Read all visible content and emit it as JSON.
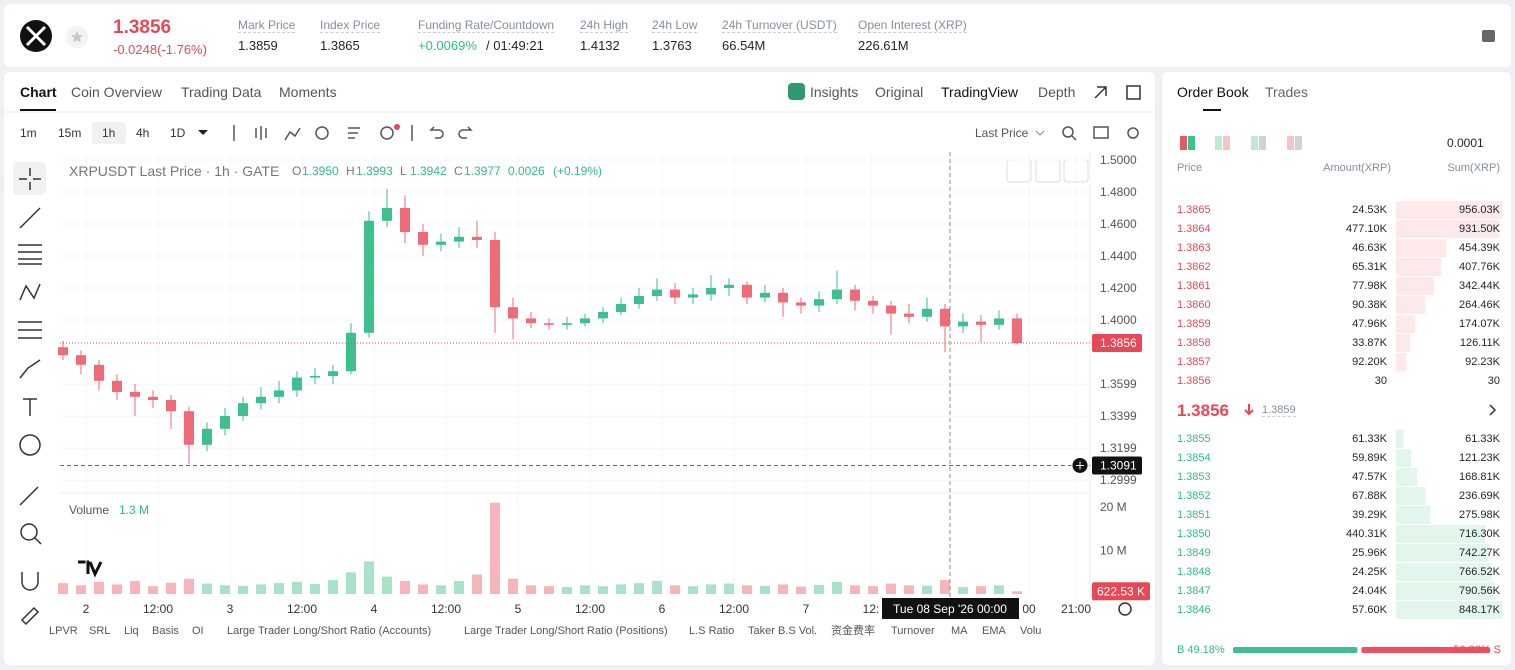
{
  "header": {
    "price": "1.3856",
    "change": "-0.0248(-1.76%)",
    "stats": [
      {
        "label": "Mark Price",
        "value": "1.3859"
      },
      {
        "label": "Index Price",
        "value": "1.3865"
      },
      {
        "label": "Funding Rate/Countdown",
        "value": "+0.0069%",
        "value2": "/ 01:49:21"
      },
      {
        "label": "24h High",
        "value": "1.4132"
      },
      {
        "label": "24h Low",
        "value": "1.3763"
      },
      {
        "label": "24h Turnover (USDT)",
        "value": "66.54M"
      },
      {
        "label": "Open Interest (XRP)",
        "value": "226.61M"
      }
    ]
  },
  "tabs": [
    "Chart",
    "Coin Overview",
    "Trading Data",
    "Moments"
  ],
  "view_tabs": [
    "Insights",
    "Original",
    "TradingView",
    "Depth"
  ],
  "intervals": [
    "1m",
    "15m",
    "1h",
    "4h",
    "1D"
  ],
  "price_source": "Last Price",
  "indicators": [
    "LPVR",
    "SRL",
    "Liq",
    "Basis",
    "OI",
    "Large Trader Long/Short Ratio (Accounts)",
    "Large Trader Long/Short Ratio (Positions)",
    "L.S Ratio",
    "Taker B.S Vol.",
    "资金费率",
    "Turnover",
    "MA",
    "EMA",
    "Volu"
  ],
  "chart_data": {
    "type": "candlestick",
    "title": "XRPUSDT Last Price · 1h · GATE",
    "ohlc_legend": [
      {
        "label": "O",
        "value": "1.3950"
      },
      {
        "label": "H",
        "value": "1.3993"
      },
      {
        "label": "L",
        "value": "1.3942"
      },
      {
        "label": "C",
        "value": "1.3977"
      }
    ],
    "change": "0.0026",
    "change_pct": "(+0.19%)",
    "open": [
      1.383,
      1.378,
      1.372,
      1.362,
      1.355,
      1.352,
      1.35,
      1.343,
      1.322,
      1.332,
      1.34,
      1.348,
      1.352,
      1.356,
      1.364,
      1.365,
      1.368,
      1.392,
      1.462,
      1.47,
      1.455,
      1.447,
      1.449,
      1.452,
      1.45,
      1.408,
      1.401,
      1.398,
      1.397,
      1.398,
      1.401,
      1.405,
      1.41,
      1.415,
      1.419,
      1.414,
      1.416,
      1.42,
      1.422,
      1.414,
      1.417,
      1.411,
      1.409,
      1.413,
      1.419,
      1.412,
      1.409,
      1.404,
      1.402,
      1.407,
      1.396,
      1.399,
      1.397,
      1.401
    ],
    "high": [
      1.387,
      1.381,
      1.375,
      1.366,
      1.36,
      1.356,
      1.353,
      1.346,
      1.336,
      1.345,
      1.352,
      1.358,
      1.362,
      1.368,
      1.37,
      1.372,
      1.398,
      1.468,
      1.482,
      1.478,
      1.46,
      1.454,
      1.458,
      1.462,
      1.455,
      1.414,
      1.405,
      1.401,
      1.402,
      1.404,
      1.408,
      1.414,
      1.42,
      1.426,
      1.423,
      1.42,
      1.428,
      1.426,
      1.424,
      1.422,
      1.42,
      1.414,
      1.418,
      1.431,
      1.422,
      1.415,
      1.412,
      1.41,
      1.414,
      1.41,
      1.404,
      1.403,
      1.406,
      1.404
    ],
    "low": [
      1.375,
      1.366,
      1.356,
      1.35,
      1.34,
      1.345,
      1.332,
      1.31,
      1.318,
      1.328,
      1.337,
      1.344,
      1.348,
      1.352,
      1.36,
      1.36,
      1.366,
      1.389,
      1.458,
      1.448,
      1.44,
      1.443,
      1.445,
      1.445,
      1.392,
      1.388,
      1.395,
      1.394,
      1.394,
      1.396,
      1.398,
      1.403,
      1.407,
      1.412,
      1.41,
      1.41,
      1.412,
      1.415,
      1.41,
      1.411,
      1.402,
      1.404,
      1.405,
      1.41,
      1.406,
      1.404,
      1.391,
      1.398,
      1.399,
      1.38,
      1.392,
      1.386,
      1.394,
      1.385
    ],
    "close": [
      1.378,
      1.372,
      1.362,
      1.355,
      1.352,
      1.35,
      1.343,
      1.322,
      1.332,
      1.34,
      1.348,
      1.352,
      1.356,
      1.364,
      1.365,
      1.368,
      1.392,
      1.462,
      1.47,
      1.455,
      1.447,
      1.449,
      1.452,
      1.45,
      1.408,
      1.401,
      1.398,
      1.397,
      1.398,
      1.401,
      1.405,
      1.41,
      1.415,
      1.419,
      1.414,
      1.416,
      1.42,
      1.422,
      1.414,
      1.417,
      1.411,
      1.409,
      1.413,
      1.419,
      1.412,
      1.409,
      1.404,
      1.402,
      1.407,
      1.396,
      1.399,
      1.397,
      1.401,
      1.3856
    ],
    "ylim": [
      1.2925,
      1.503125
    ],
    "yticks": [
      {
        "value": 1.5,
        "label": "1.5000"
      },
      {
        "value": 1.48,
        "label": "1.4800"
      },
      {
        "value": 1.46,
        "label": "1.4600"
      },
      {
        "value": 1.44,
        "label": "1.4400"
      },
      {
        "value": 1.42,
        "label": "1.4200"
      },
      {
        "value": 1.4,
        "label": "1.4000"
      },
      1.3599,
      1.3399,
      1.3199,
      1.2999
    ],
    "xticks": [
      "2",
      "12:00",
      "3",
      "12:00",
      "4",
      "12:00",
      "5",
      "12:00",
      "6",
      "12:00",
      "7",
      "12:",
      "00",
      "21:00"
    ],
    "last_price": {
      "value": 1.3856,
      "label": "1.3856"
    },
    "marker_price": {
      "value": 1.3091,
      "label": "1.3091"
    },
    "crosshair_label": "Tue 08 Sep '26 00:00",
    "up_color": "#3dbf8e",
    "down_color": "#ef6b77",
    "volume": {
      "title": "Volume",
      "current": "1.3 M",
      "values": [
        2.5,
        2.0,
        2.8,
        2.2,
        3.0,
        1.8,
        2.6,
        3.5,
        2.4,
        2.0,
        1.9,
        2.2,
        2.5,
        2.8,
        2.3,
        3.2,
        5.0,
        7.5,
        4.0,
        3.0,
        2.2,
        2.0,
        3.0,
        4.5,
        21.0,
        3.5,
        2.0,
        1.8,
        1.6,
        2.0,
        1.8,
        2.2,
        2.5,
        3.0,
        2.0,
        1.8,
        2.2,
        2.4,
        2.0,
        1.9,
        2.2,
        1.7,
        2.1,
        2.8,
        2.0,
        1.8,
        2.4,
        2.0,
        1.9,
        3.2,
        1.6,
        1.8,
        2.0,
        0.62253
      ],
      "tag": {
        "value": 0.62253,
        "label": "622.53 K"
      },
      "ylim": [
        0,
        23
      ],
      "yticks": [
        {
          "value": 10,
          "label": "10 M"
        },
        {
          "value": 20,
          "label": "20 M"
        }
      ]
    }
  },
  "order_book": {
    "tabs": [
      "Order Book",
      "Trades"
    ],
    "tick_size": "0.0001",
    "columns": [
      "Price",
      "Amount(XRP)",
      "Sum(XRP)"
    ],
    "asks": [
      {
        "price": "1.3865",
        "amount": "24.53K",
        "sum": "956.03K",
        "depth": 956.03
      },
      {
        "price": "1.3864",
        "amount": "477.10K",
        "sum": "931.50K",
        "depth": 931.5
      },
      {
        "price": "1.3863",
        "amount": "46.63K",
        "sum": "454.39K",
        "depth": 454.39
      },
      {
        "price": "1.3862",
        "amount": "65.31K",
        "sum": "407.76K",
        "depth": 407.76
      },
      {
        "price": "1.3861",
        "amount": "77.98K",
        "sum": "342.44K",
        "depth": 342.44
      },
      {
        "price": "1.3860",
        "amount": "90.38K",
        "sum": "264.46K",
        "depth": 264.46
      },
      {
        "price": "1.3859",
        "amount": "47.96K",
        "sum": "174.07K",
        "depth": 174.07
      },
      {
        "price": "1.3858",
        "amount": "33.87K",
        "sum": "126.11K",
        "depth": 126.11
      },
      {
        "price": "1.3857",
        "amount": "92.20K",
        "sum": "92.23K",
        "depth": 92.23
      },
      {
        "price": "1.3856",
        "amount": "30",
        "sum": "30",
        "depth": 0.03
      }
    ],
    "mid_price": "1.3856",
    "mark_price": "1.3859",
    "bids": [
      {
        "price": "1.3855",
        "amount": "61.33K",
        "sum": "61.33K",
        "depth": 61.33
      },
      {
        "price": "1.3854",
        "amount": "59.89K",
        "sum": "121.23K",
        "depth": 121.23
      },
      {
        "price": "1.3853",
        "amount": "47.57K",
        "sum": "168.81K",
        "depth": 168.81
      },
      {
        "price": "1.3852",
        "amount": "67.88K",
        "sum": "236.69K",
        "depth": 236.69
      },
      {
        "price": "1.3851",
        "amount": "39.29K",
        "sum": "275.98K",
        "depth": 275.98
      },
      {
        "price": "1.3850",
        "amount": "440.31K",
        "sum": "716.30K",
        "depth": 716.3
      },
      {
        "price": "1.3849",
        "amount": "25.96K",
        "sum": "742.27K",
        "depth": 742.27
      },
      {
        "price": "1.3848",
        "amount": "24.25K",
        "sum": "766.52K",
        "depth": 766.52
      },
      {
        "price": "1.3847",
        "amount": "24.04K",
        "sum": "790.56K",
        "depth": 790.56
      },
      {
        "price": "1.3846",
        "amount": "57.60K",
        "sum": "848.17K",
        "depth": 848.17
      }
    ],
    "buy_ratio": {
      "value": 49.18,
      "label": "B 49.18%"
    },
    "sell_ratio": {
      "value": 50.82,
      "label": "50.82% S"
    }
  }
}
